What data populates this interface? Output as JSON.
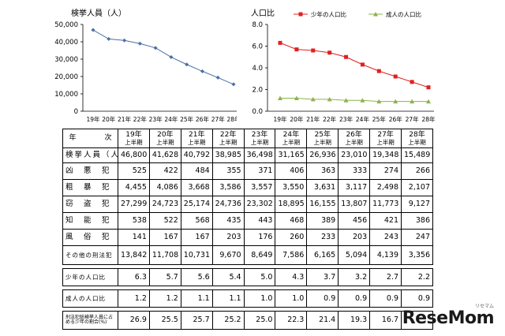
{
  "chart_data": [
    {
      "type": "line",
      "title": "検挙人員（人）",
      "categories": [
        "19年",
        "20年",
        "21年",
        "22年",
        "23年",
        "24年",
        "25年",
        "26年",
        "27年",
        "28年"
      ],
      "ylim": [
        0,
        50000
      ],
      "yticks": [
        "0",
        "10,000",
        "20,000",
        "30,000",
        "40,000",
        "50,000"
      ],
      "grid": false,
      "series": [
        {
          "values": [
            46800,
            41628,
            40792,
            38985,
            36498,
            31165,
            26936,
            23010,
            19348,
            15489
          ],
          "color": "#4a6fa5"
        }
      ]
    },
    {
      "type": "line",
      "title": "人口比",
      "categories": [
        "19年",
        "20年",
        "21年",
        "22年",
        "23年",
        "24年",
        "25年",
        "26年",
        "27年",
        "28年"
      ],
      "ylim": [
        0,
        8.0
      ],
      "yticks": [
        "0.0",
        "2.0",
        "4.0",
        "6.0",
        "8.0"
      ],
      "grid": false,
      "legend": "top",
      "series": [
        {
          "name": "少年の人口比",
          "values": [
            6.3,
            5.7,
            5.6,
            5.4,
            5.0,
            4.3,
            3.7,
            3.2,
            2.7,
            2.2
          ],
          "color": "#e02020"
        },
        {
          "name": "成人の人口比",
          "values": [
            1.2,
            1.2,
            1.1,
            1.1,
            1.0,
            1.0,
            0.9,
            0.9,
            0.9,
            0.9
          ],
          "color": "#8db34a"
        }
      ]
    }
  ],
  "table": {
    "corner_label": "年　　　　次",
    "years": [
      "19年",
      "20年",
      "21年",
      "22年",
      "23年",
      "24年",
      "25年",
      "26年",
      "27年",
      "28年"
    ],
    "period": "上半期",
    "rows": [
      {
        "label": "検挙人員（人）",
        "values": [
          "46,800",
          "41,628",
          "40,792",
          "38,985",
          "36,498",
          "31,165",
          "26,936",
          "23,010",
          "19,348",
          "15,489"
        ]
      },
      {
        "label": "凶　悪　犯",
        "values": [
          "525",
          "422",
          "484",
          "355",
          "371",
          "406",
          "363",
          "333",
          "274",
          "266"
        ]
      },
      {
        "label": "粗　暴　犯",
        "values": [
          "4,455",
          "4,086",
          "3,668",
          "3,586",
          "3,557",
          "3,550",
          "3,631",
          "3,117",
          "2,498",
          "2,107"
        ]
      },
      {
        "label": "窃　盗　犯",
        "values": [
          "27,299",
          "24,723",
          "25,174",
          "24,736",
          "23,302",
          "18,895",
          "16,155",
          "13,807",
          "11,773",
          "9,127"
        ]
      },
      {
        "label": "知　能　犯",
        "values": [
          "538",
          "522",
          "568",
          "435",
          "443",
          "468",
          "389",
          "456",
          "421",
          "386"
        ]
      },
      {
        "label": "風　俗　犯",
        "values": [
          "141",
          "167",
          "167",
          "203",
          "176",
          "260",
          "233",
          "203",
          "243",
          "247"
        ]
      },
      {
        "label": "その他の刑法犯",
        "values": [
          "13,842",
          "11,708",
          "10,731",
          "9,670",
          "8,649",
          "7,586",
          "6,165",
          "5,094",
          "4,139",
          "3,356"
        ]
      }
    ],
    "youth_ratio": {
      "label": "少年の人口比",
      "values": [
        "6.3",
        "5.7",
        "5.6",
        "5.4",
        "5.0",
        "4.3",
        "3.7",
        "3.2",
        "2.7",
        "2.2"
      ]
    },
    "adult_ratio": {
      "label": "成人の人口比",
      "values": [
        "1.2",
        "1.2",
        "1.1",
        "1.1",
        "1.0",
        "1.0",
        "0.9",
        "0.9",
        "0.9",
        "0.9"
      ]
    },
    "share": {
      "label": "刑法犯総検挙人員に占める少年の割合(%)",
      "values": [
        "26.9",
        "25.5",
        "25.7",
        "25.2",
        "25.0",
        "22.3",
        "21.4",
        "19.3",
        "16.7",
        ""
      ]
    }
  },
  "watermark": {
    "text": "ReseMom",
    "sub": "リセマム"
  }
}
